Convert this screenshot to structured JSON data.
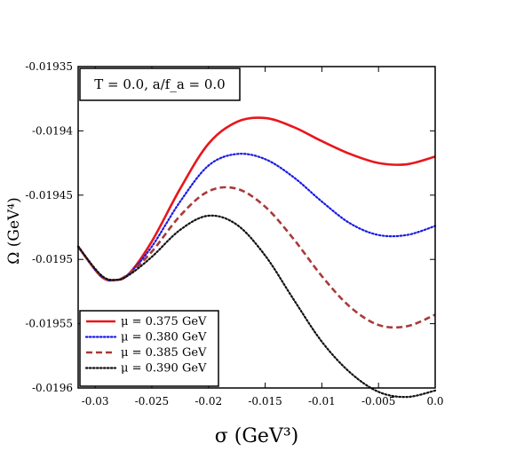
{
  "chart_data": {
    "type": "line",
    "annotation": "T = 0.0, a/f_a = 0.0",
    "xlabel": "σ (GeV³)",
    "ylabel": "Ω (GeV⁴)",
    "xlim": [
      -0.0315,
      0.0
    ],
    "ylim": [
      -0.0196,
      -0.01935
    ],
    "x_ticks": [
      -0.03,
      -0.025,
      -0.02,
      -0.015,
      -0.01,
      -0.005,
      0.0
    ],
    "x_tick_labels": [
      "-0.03",
      "-0.025",
      "-0.02",
      "-0.015",
      "-0.01",
      "-0.005",
      "0.0"
    ],
    "y_ticks": [
      -0.0196,
      -0.01955,
      -0.0195,
      -0.01945,
      -0.0194,
      -0.01935
    ],
    "y_tick_labels": [
      "-0.0196",
      "-0.01955",
      "-0.0195",
      "-0.01945",
      "-0.0194",
      "-0.01935"
    ],
    "legend_position": "bottom-left",
    "grid": false,
    "series": [
      {
        "name": "μ = 0.375 GeV",
        "color": "#e8161b",
        "dash": "solid",
        "x": [
          -0.0315,
          -0.0295,
          -0.0282,
          -0.027,
          -0.025,
          -0.0225,
          -0.02,
          -0.0175,
          -0.015,
          -0.0125,
          -0.01,
          -0.0075,
          -0.005,
          -0.0025,
          0.0
        ],
        "y": [
          -0.01949,
          -0.019513,
          -0.019516,
          -0.019511,
          -0.019486,
          -0.019445,
          -0.01941,
          -0.019393,
          -0.01939,
          -0.019397,
          -0.019408,
          -0.019418,
          -0.019425,
          -0.019426,
          -0.01942
        ]
      },
      {
        "name": "μ = 0.380 GeV",
        "color": "#1a1ae6",
        "dash": "dotted",
        "x": [
          -0.0315,
          -0.0295,
          -0.0282,
          -0.027,
          -0.025,
          -0.0225,
          -0.02,
          -0.0175,
          -0.015,
          -0.0125,
          -0.01,
          -0.0075,
          -0.005,
          -0.0025,
          0.0
        ],
        "y": [
          -0.01949,
          -0.019513,
          -0.019516,
          -0.019511,
          -0.01949,
          -0.019455,
          -0.019427,
          -0.019418,
          -0.019422,
          -0.019436,
          -0.019455,
          -0.019472,
          -0.019481,
          -0.019481,
          -0.019474
        ]
      },
      {
        "name": "μ = 0.385 GeV",
        "color": "#a83a3a",
        "dash": "dashed",
        "x": [
          -0.0315,
          -0.0295,
          -0.0282,
          -0.027,
          -0.025,
          -0.0225,
          -0.02,
          -0.0175,
          -0.015,
          -0.0125,
          -0.01,
          -0.0075,
          -0.005,
          -0.0025,
          0.0
        ],
        "y": [
          -0.01949,
          -0.019513,
          -0.019516,
          -0.019511,
          -0.019494,
          -0.019466,
          -0.019447,
          -0.019445,
          -0.019459,
          -0.019484,
          -0.019513,
          -0.019537,
          -0.019551,
          -0.019552,
          -0.019543
        ]
      },
      {
        "name": "μ = 0.390 GeV",
        "color": "#111111",
        "dash": "dotted",
        "x": [
          -0.0315,
          -0.0295,
          -0.0282,
          -0.027,
          -0.025,
          -0.0225,
          -0.02,
          -0.0175,
          -0.015,
          -0.0125,
          -0.01,
          -0.0075,
          -0.005,
          -0.0025,
          0.0
        ],
        "y": [
          -0.01949,
          -0.019512,
          -0.019516,
          -0.019512,
          -0.019498,
          -0.019477,
          -0.019466,
          -0.019473,
          -0.019497,
          -0.019531,
          -0.019564,
          -0.019588,
          -0.019603,
          -0.019607,
          -0.019602
        ]
      }
    ]
  }
}
